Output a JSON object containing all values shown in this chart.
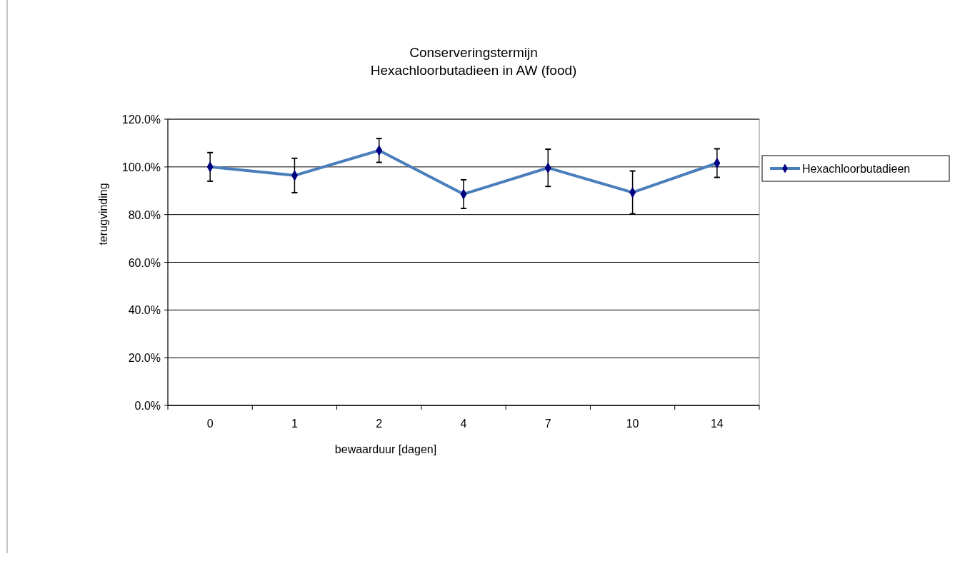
{
  "chart_data": {
    "type": "line",
    "title": "Conserveringstermijn\nHexachloorbutadieen in AW (food)",
    "xlabel": "bewaarduur [dagen]",
    "ylabel": "terugvinding",
    "categories": [
      "0",
      "1",
      "2",
      "4",
      "7",
      "10",
      "14"
    ],
    "series": [
      {
        "name": "Hexachloorbutadieen",
        "color": "#4a7ebb",
        "values": [
          100.0,
          96.4,
          106.9,
          88.6,
          99.6,
          89.3,
          101.6
        ],
        "errors": [
          6.0,
          7.2,
          5.0,
          6.0,
          7.8,
          9.0,
          6.0
        ]
      }
    ],
    "ylim": [
      0,
      120
    ],
    "yticks": [
      {
        "value": 0,
        "label": "0.0%"
      },
      {
        "value": 20,
        "label": "20.0%"
      },
      {
        "value": 40,
        "label": "40.0%"
      },
      {
        "value": 60,
        "label": "60.0%"
      },
      {
        "value": 80,
        "label": "80.0%"
      },
      {
        "value": 100,
        "label": "100.0%"
      },
      {
        "value": 120,
        "label": "120.0%"
      }
    ],
    "grid": "y",
    "legend": "right",
    "marker": "diamond",
    "line_style": "solid"
  }
}
